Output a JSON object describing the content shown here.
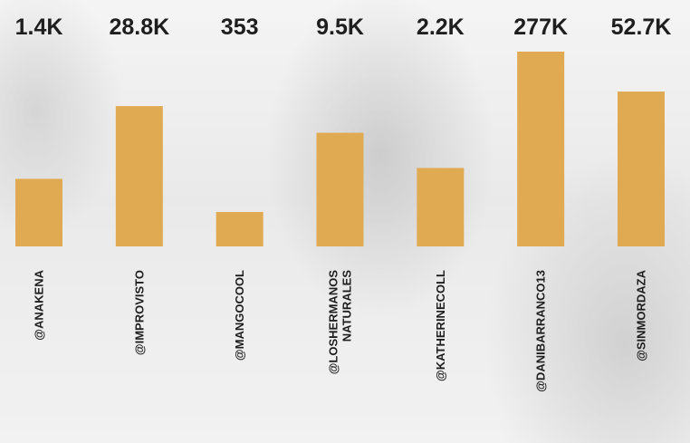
{
  "chart_data": {
    "type": "bar",
    "categories": [
      [
        "@ANAKENA"
      ],
      [
        "@IMPROVISTO"
      ],
      [
        "@MANGOCOOL"
      ],
      [
        "@LOSHERMANOS",
        "NATURALES"
      ],
      [
        "@KATHERINECOLL"
      ],
      [
        "@DANIBARRANCO13"
      ],
      [
        "@SINMORDAZA"
      ]
    ],
    "values": [
      1400,
      28800,
      353,
      9500,
      2200,
      277000,
      52700
    ],
    "value_labels": [
      "1.4K",
      "28.8K",
      "353",
      "9.5K",
      "2.2K",
      "277K",
      "52.7K"
    ],
    "scale": "log",
    "bar_color": "#E0AA52",
    "title": "",
    "xlabel": "",
    "ylabel": "",
    "grid": false,
    "legend": "none"
  }
}
